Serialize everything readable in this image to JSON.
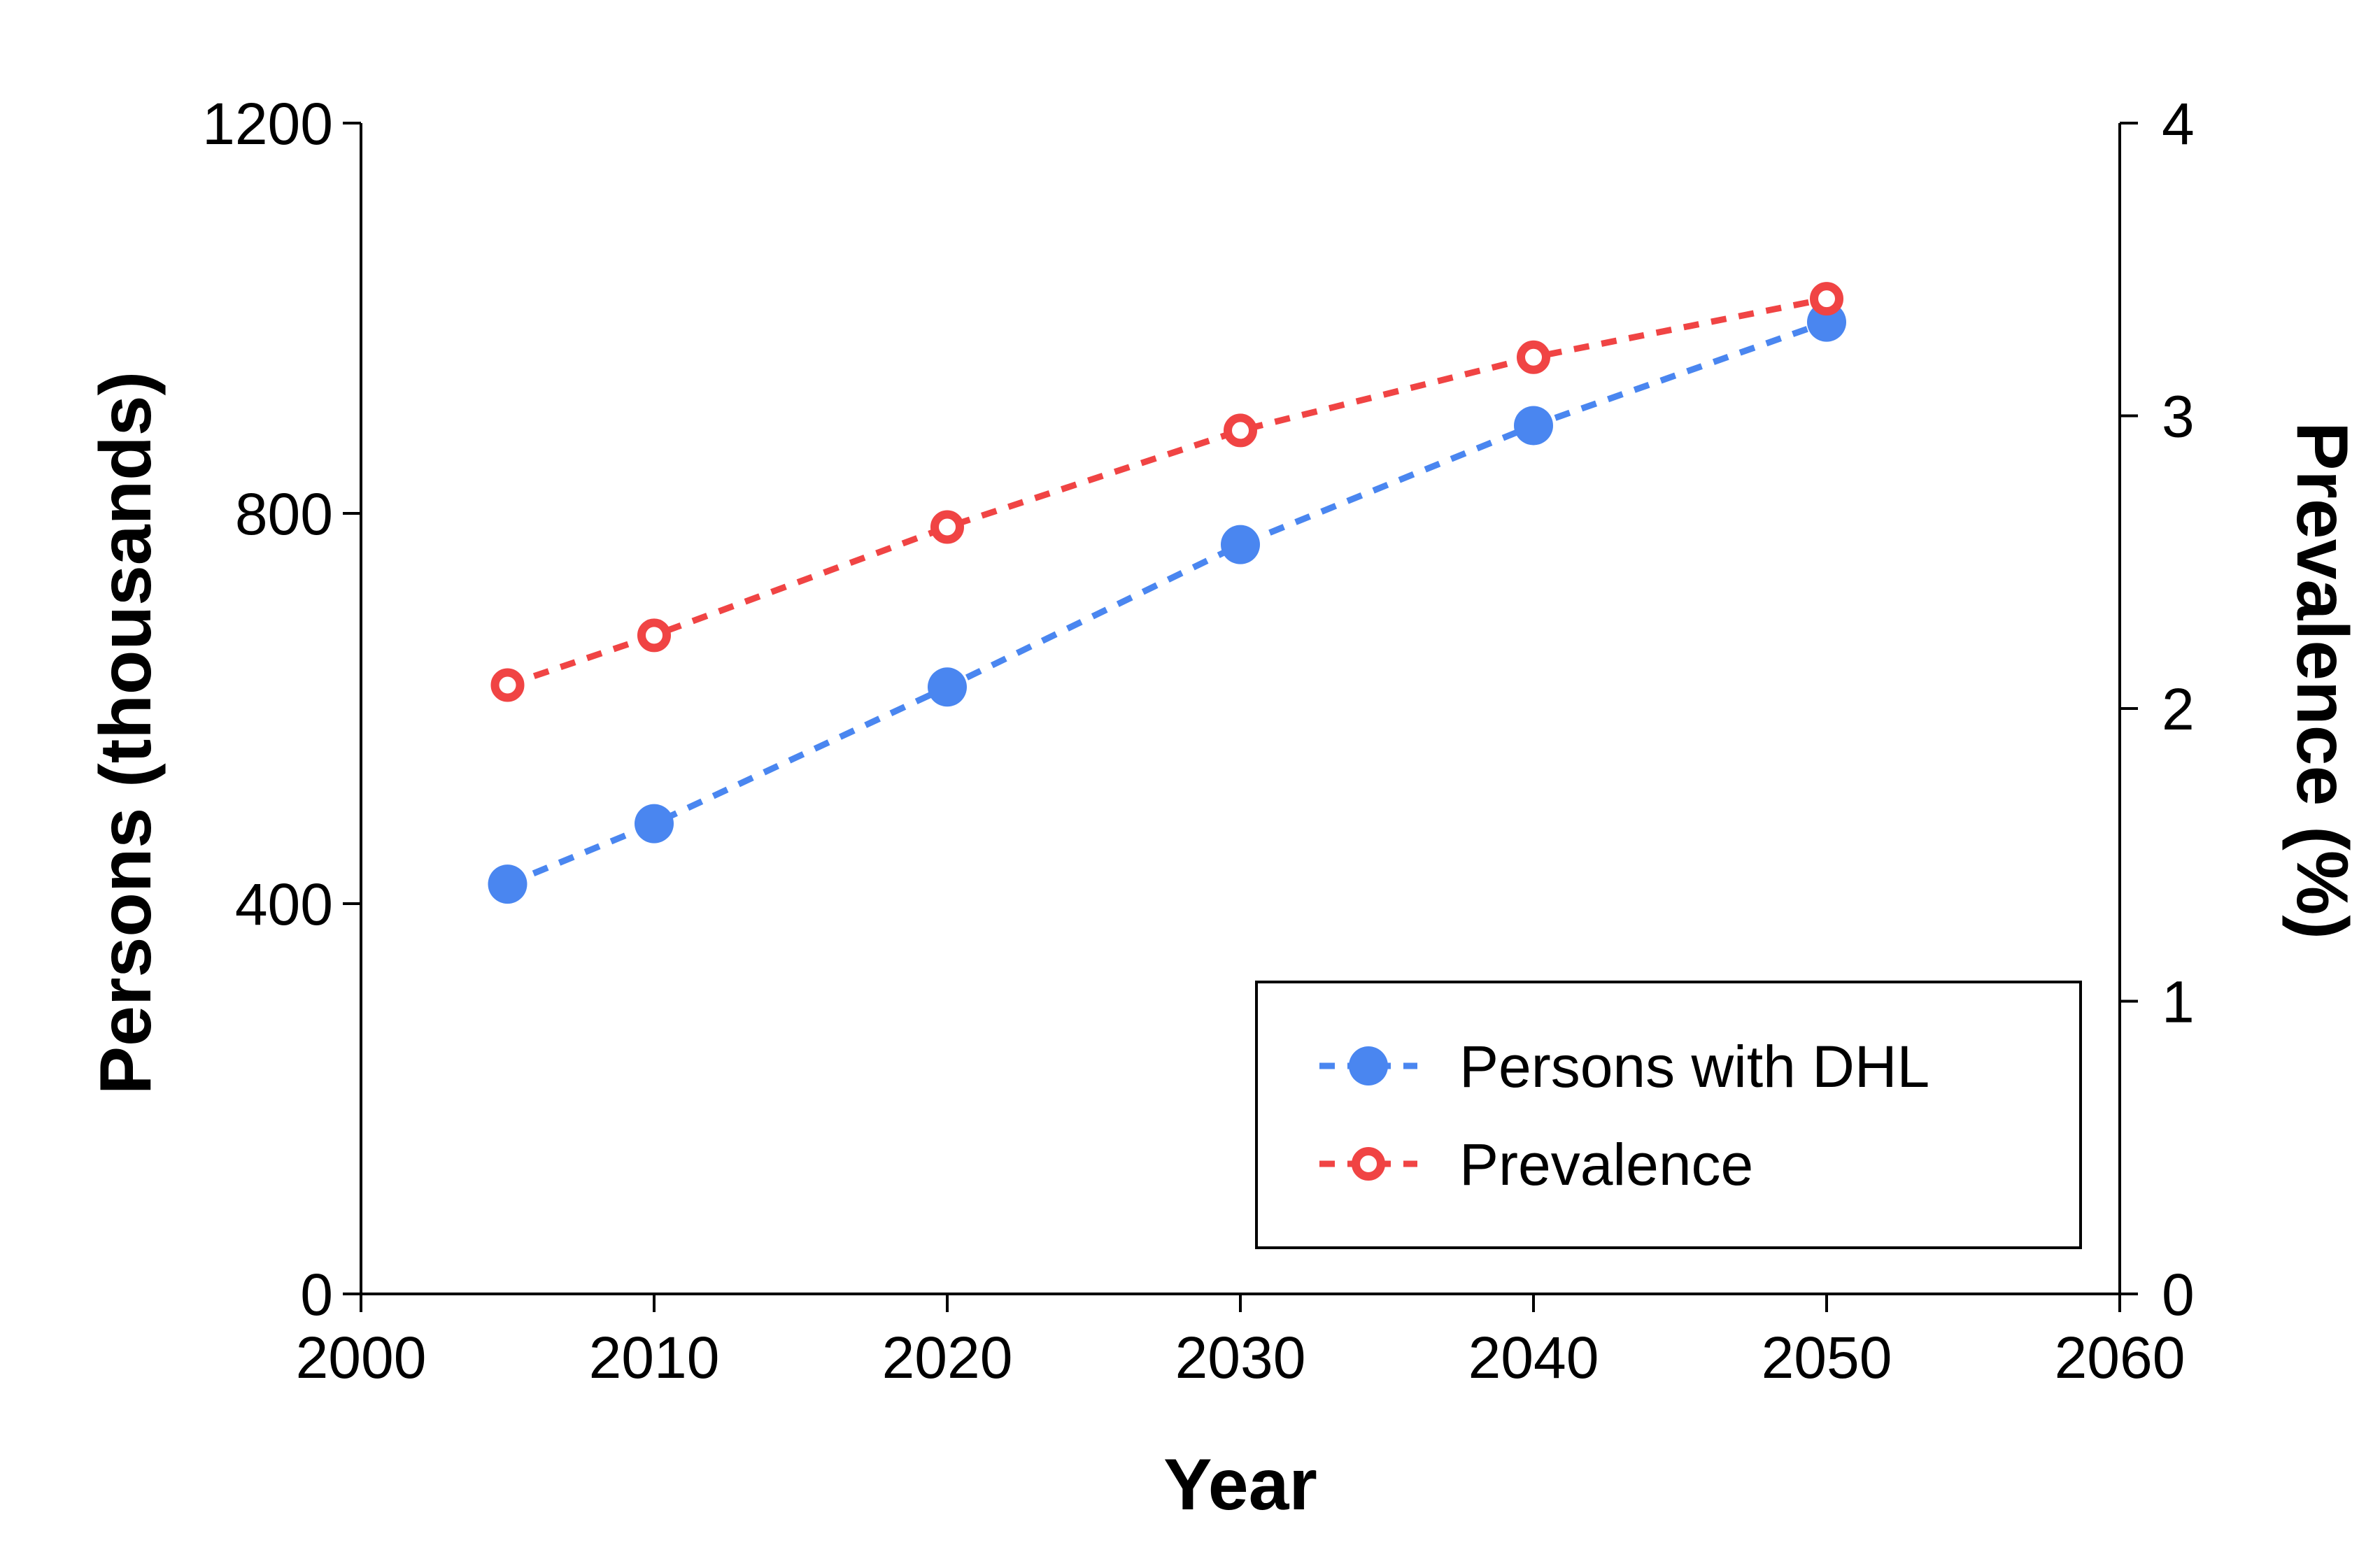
{
  "chart_data": {
    "type": "line",
    "x": [
      2005,
      2010,
      2020,
      2030,
      2040,
      2050
    ],
    "xlabel": "Year",
    "xlim": [
      2000,
      2060
    ],
    "xticks": [
      "2000",
      "2010",
      "2020",
      "2030",
      "2040",
      "2050",
      "2060"
    ],
    "ylabel": "Persons (thousands)",
    "ylim": [
      0,
      1200
    ],
    "yticks": [
      "0",
      "400",
      "800",
      "1200"
    ],
    "y2label": "Prevalence (%)",
    "y2lim": [
      0,
      4
    ],
    "y2ticks": [
      "0",
      "1",
      "2",
      "3",
      "4"
    ],
    "series": [
      {
        "name": "Persons with DHL",
        "axis": "left",
        "values": [
          420,
          482,
          622,
          768,
          890,
          996
        ],
        "color": "#4a86f0",
        "marker": "filled-circle",
        "line": "dashed"
      },
      {
        "name": "Prevalence",
        "axis": "right",
        "values": [
          2.08,
          2.25,
          2.62,
          2.95,
          3.2,
          3.4
        ],
        "color": "#f04444",
        "marker": "open-circle",
        "line": "dashed"
      }
    ],
    "legend_position": "bottom-right",
    "grid": false
  }
}
